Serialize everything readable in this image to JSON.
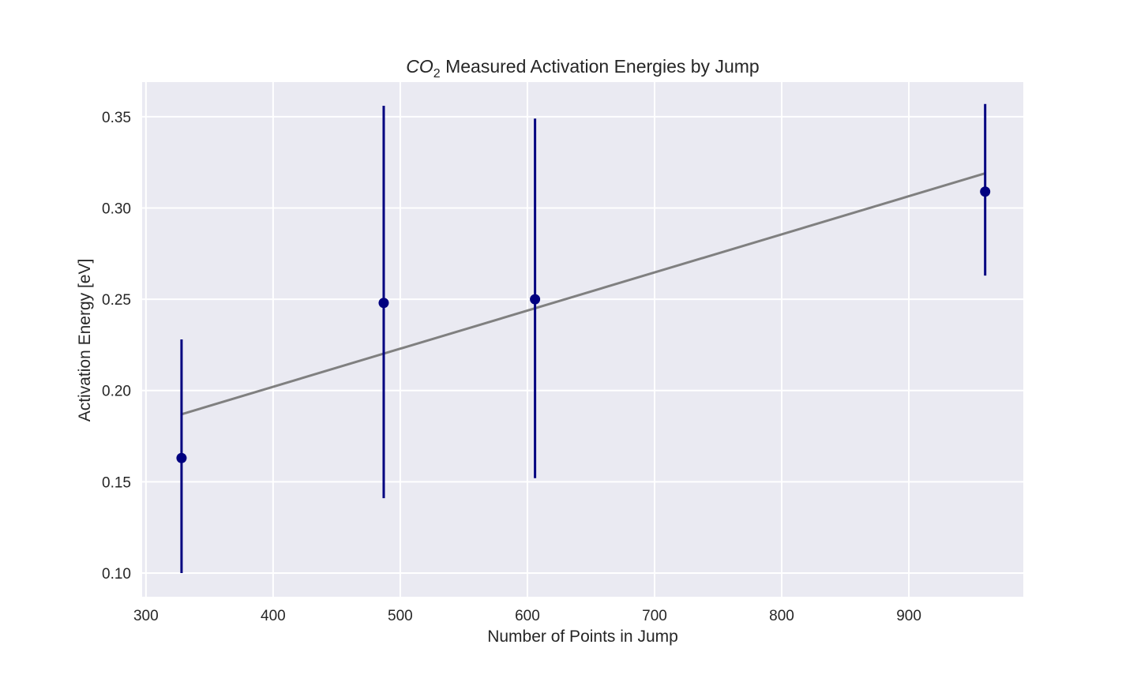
{
  "chart_data": {
    "type": "scatter",
    "title_prefix": "CO",
    "title_subscript": "2",
    "title_suffix": " Measured Activation Energies by Jump",
    "xlabel": "Number of Points in Jump",
    "ylabel": "Activation Energy [eV]",
    "xlim": [
      297,
      990
    ],
    "ylim": [
      0.087,
      0.369
    ],
    "xticks": [
      300,
      400,
      500,
      600,
      700,
      800,
      900
    ],
    "yticks": [
      0.1,
      0.15,
      0.2,
      0.25,
      0.3,
      0.35
    ],
    "ytick_labels": [
      "0.10",
      "0.15",
      "0.20",
      "0.25",
      "0.30",
      "0.35"
    ],
    "grid": true,
    "points": [
      {
        "x": 328,
        "y": 0.163,
        "err_low": 0.1,
        "err_high": 0.228
      },
      {
        "x": 487,
        "y": 0.248,
        "err_low": 0.141,
        "err_high": 0.356
      },
      {
        "x": 606,
        "y": 0.25,
        "err_low": 0.152,
        "err_high": 0.349
      },
      {
        "x": 960,
        "y": 0.309,
        "err_low": 0.263,
        "err_high": 0.357
      }
    ],
    "fit_line": {
      "x": [
        328,
        960
      ],
      "y": [
        0.187,
        0.319
      ]
    },
    "colors": {
      "background": "#eaeaf2",
      "grid": "#ffffff",
      "points": "#000080",
      "fit": "#808080"
    }
  }
}
